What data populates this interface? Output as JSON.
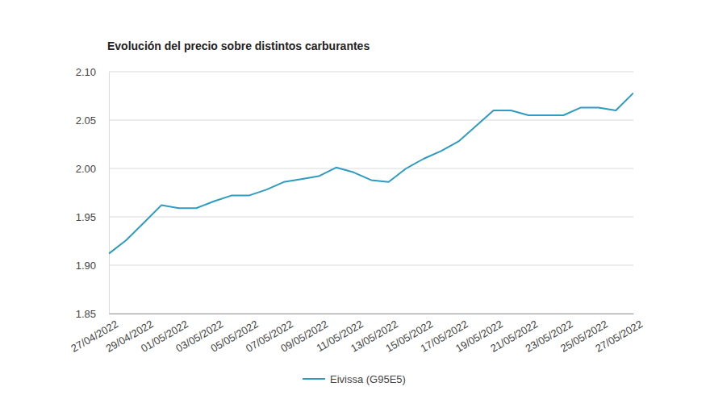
{
  "chart_data": {
    "type": "line",
    "title": "Evolución del precio sobre distintos carburantes",
    "categories": [
      "27/04/2022",
      null,
      "29/04/2022",
      null,
      "01/05/2022",
      null,
      "03/05/2022",
      null,
      "05/05/2022",
      null,
      "07/05/2022",
      null,
      "09/05/2022",
      null,
      "11/05/2022",
      null,
      "13/05/2022",
      null,
      "15/05/2022",
      null,
      "17/05/2022",
      null,
      "19/05/2022",
      null,
      "21/05/2022",
      null,
      "23/05/2022",
      null,
      "25/05/2022",
      null,
      "27/05/2022"
    ],
    "series": [
      {
        "name": "Eivissa (G95E5)",
        "color": "#2f9bc1",
        "values": [
          1.912,
          1.926,
          1.944,
          1.962,
          1.959,
          1.959,
          1.966,
          1.972,
          1.972,
          1.978,
          1.986,
          1.989,
          1.992,
          2.001,
          1.996,
          1.988,
          1.986,
          2.0,
          2.01,
          2.018,
          2.028,
          2.044,
          2.06,
          2.06,
          2.055,
          2.055,
          2.055,
          2.063,
          2.063,
          2.06,
          2.078
        ]
      }
    ],
    "ylim": [
      1.85,
      2.1
    ],
    "yticks": [
      1.85,
      {
        "value": 1.9,
        "label": "1.90"
      },
      1.95,
      {
        "value": 2.0,
        "label": "2.00"
      },
      2.05,
      {
        "value": 2.1,
        "label": "2.10"
      }
    ],
    "grid": true,
    "legend": "bottom"
  }
}
